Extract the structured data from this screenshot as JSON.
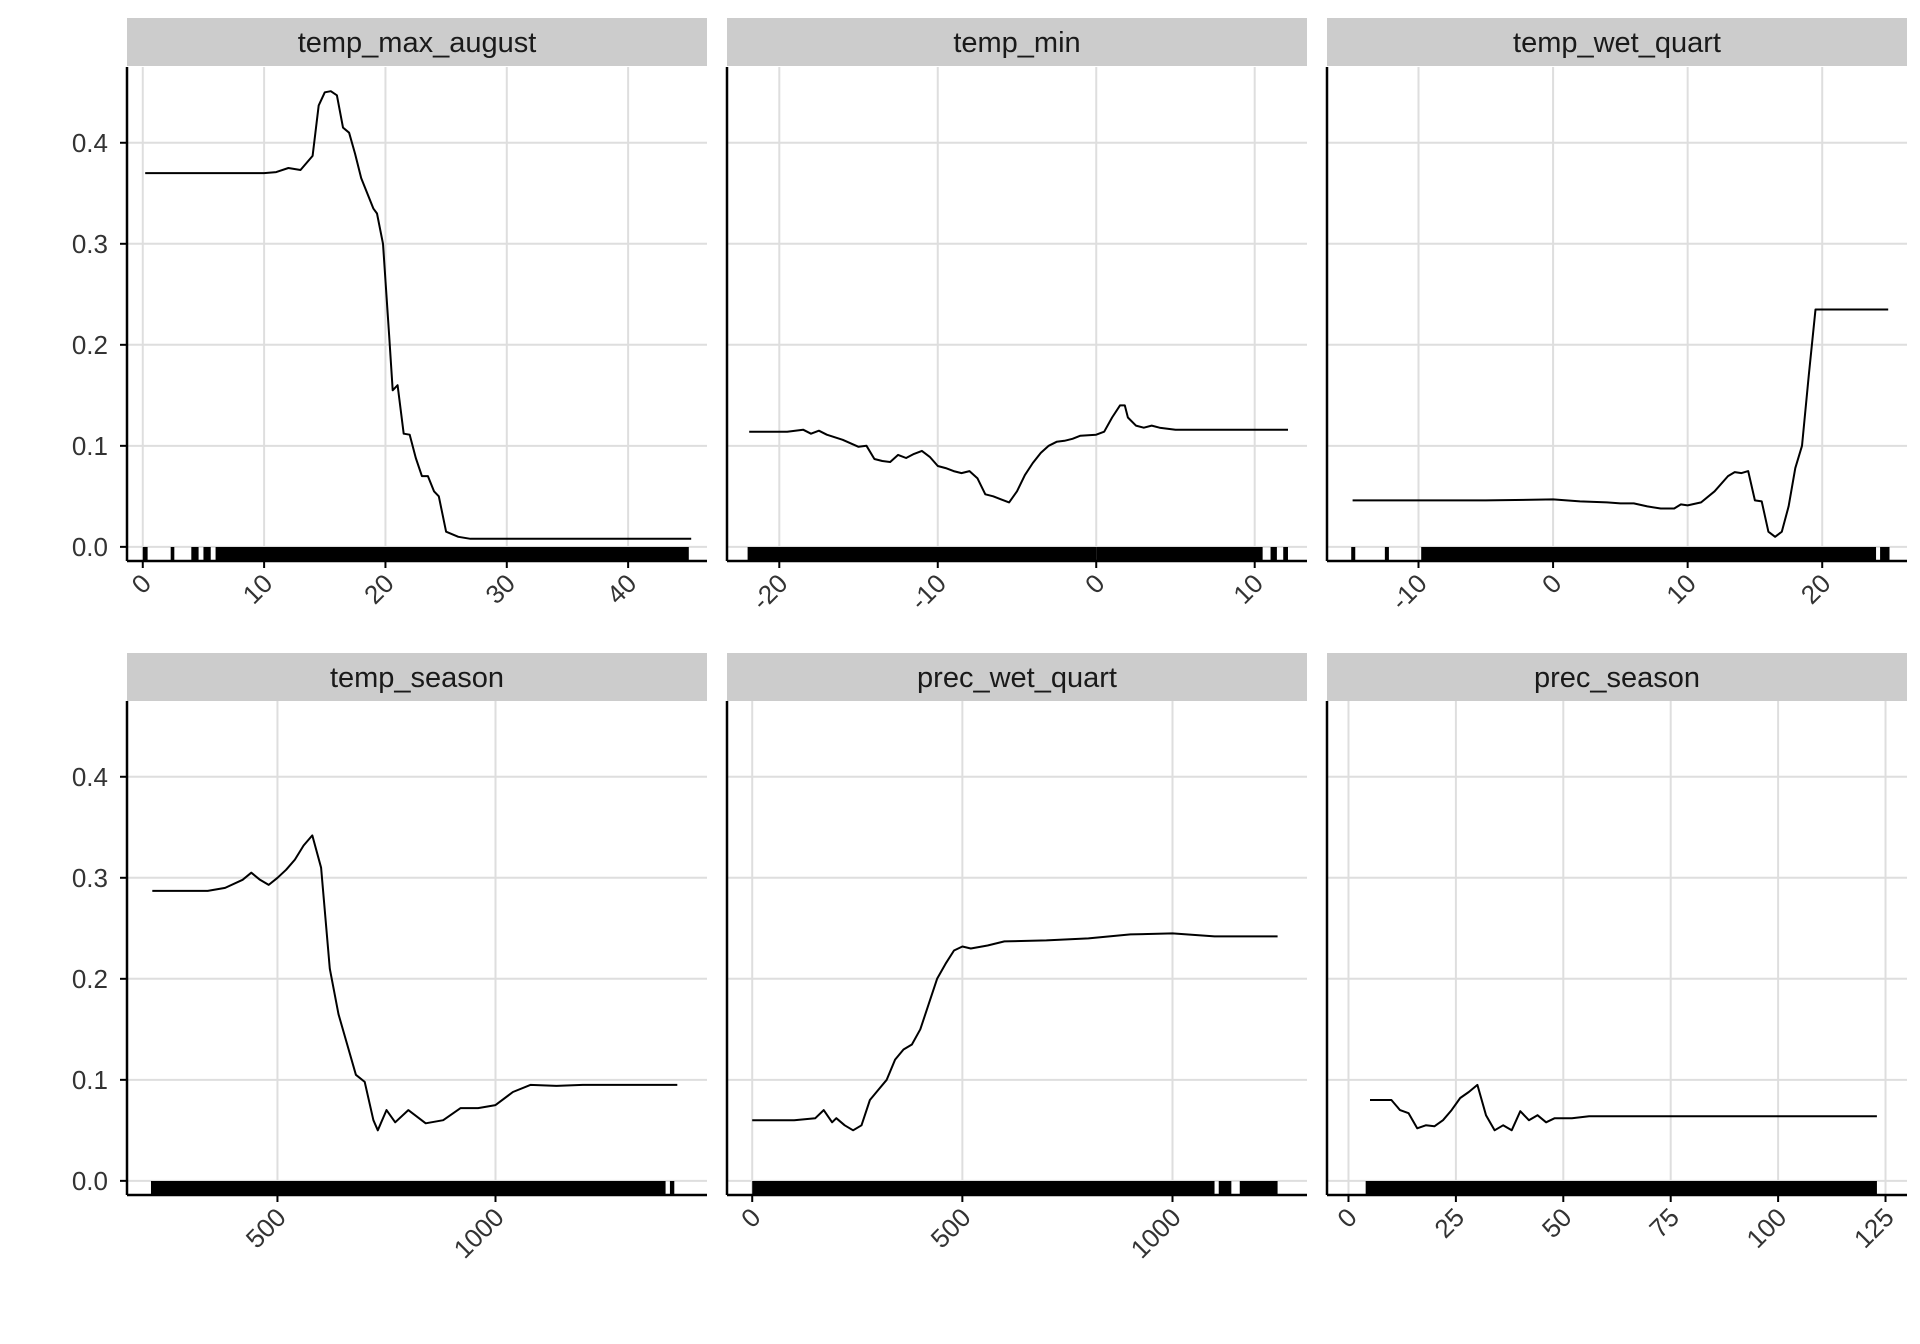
{
  "figure": {
    "type": "faceted line chart (partial dependence) with rug marks",
    "shared_y_ticks": [
      "0.0",
      "0.1",
      "0.2",
      "0.3",
      "0.4"
    ],
    "grid": true,
    "colors": {
      "line": "#000000",
      "strip": "#cccccc",
      "grid": "#dedede",
      "axis": "#000000"
    }
  },
  "chart_data": [
    {
      "type": "line",
      "title": "temp_max_august",
      "xlim": [
        -1.3,
        46.5
      ],
      "ylim": [
        -0.014,
        0.475
      ],
      "xticks": [
        0,
        10,
        20,
        30,
        40
      ],
      "xtick_labels": [
        "0",
        "10",
        "20",
        "30",
        "40"
      ],
      "yticks": [
        0,
        0.1,
        0.2,
        0.3,
        0.4
      ],
      "ytick_labels": [
        "0.0",
        "0.1",
        "0.2",
        "0.3",
        "0.4"
      ],
      "x": [
        0.2,
        5,
        10,
        11,
        12,
        13,
        14,
        14.5,
        15,
        15.5,
        16,
        16.5,
        17,
        17.5,
        18,
        19,
        19.3,
        19.8,
        20.3,
        20.6,
        21,
        21.5,
        22,
        22.5,
        23,
        23.5,
        24,
        24.4,
        25,
        26,
        27,
        35,
        45.2
      ],
      "y": [
        0.37,
        0.37,
        0.37,
        0.371,
        0.375,
        0.373,
        0.387,
        0.437,
        0.45,
        0.451,
        0.447,
        0.415,
        0.41,
        0.389,
        0.365,
        0.335,
        0.33,
        0.3,
        0.21,
        0.155,
        0.16,
        0.112,
        0.111,
        0.088,
        0.07,
        0.07,
        0.055,
        0.05,
        0.015,
        0.01,
        0.008,
        0.008,
        0.008
      ],
      "rug": [
        {
          "from": 0,
          "to": 0.4
        },
        {
          "from": 2.3,
          "to": 2.6
        },
        {
          "from": 4,
          "to": 4.6
        },
        {
          "from": 5,
          "to": 5.6
        },
        {
          "from": 6,
          "to": 45
        }
      ]
    },
    {
      "type": "line",
      "title": "temp_min",
      "xlim": [
        -23.3,
        13.3
      ],
      "ylim": [
        -0.014,
        0.475
      ],
      "xticks": [
        -20,
        -10,
        0,
        10
      ],
      "xtick_labels": [
        "-20",
        "-10",
        "0",
        "10"
      ],
      "yticks": [
        0,
        0.1,
        0.2,
        0.3,
        0.4
      ],
      "ytick_labels": [
        "0.0",
        "0.1",
        "0.2",
        "0.3",
        "0.4"
      ],
      "x": [
        -21.9,
        -19.5,
        -18.5,
        -18,
        -17.5,
        -17,
        -16,
        -15,
        -14.5,
        -14,
        -13.5,
        -13,
        -12.5,
        -12,
        -11.5,
        -11,
        -10.5,
        -10,
        -9.5,
        -9,
        -8.5,
        -8,
        -7.5,
        -7,
        -6.5,
        -6,
        -5.5,
        -5,
        -4.5,
        -4,
        -3.5,
        -3,
        -2.5,
        -2,
        -1.5,
        -1,
        0,
        0.5,
        1,
        1.5,
        1.8,
        2,
        2.5,
        3,
        3.5,
        4,
        5,
        6,
        8,
        10,
        12.1
      ],
      "y": [
        0.114,
        0.114,
        0.116,
        0.112,
        0.115,
        0.111,
        0.106,
        0.099,
        0.1,
        0.087,
        0.085,
        0.084,
        0.091,
        0.088,
        0.092,
        0.095,
        0.089,
        0.08,
        0.078,
        0.075,
        0.073,
        0.075,
        0.068,
        0.052,
        0.05,
        0.047,
        0.044,
        0.055,
        0.071,
        0.083,
        0.093,
        0.1,
        0.104,
        0.105,
        0.107,
        0.11,
        0.111,
        0.114,
        0.128,
        0.14,
        0.14,
        0.128,
        0.12,
        0.118,
        0.12,
        0.118,
        0.116,
        0.116,
        0.116,
        0.116,
        0.116
      ],
      "rug": [
        {
          "from": -22,
          "to": 0
        },
        {
          "from": 0,
          "to": 10.5
        },
        {
          "from": 11,
          "to": 11.4
        },
        {
          "from": 11.8,
          "to": 12.1
        }
      ]
    },
    {
      "type": "line",
      "title": "temp_wet_quart",
      "xlim": [
        -16.8,
        26.3
      ],
      "ylim": [
        -0.014,
        0.475
      ],
      "xticks": [
        -10,
        0,
        10,
        20
      ],
      "xtick_labels": [
        "-10",
        "0",
        "10",
        "20"
      ],
      "yticks": [
        0,
        0.1,
        0.2,
        0.3,
        0.4
      ],
      "ytick_labels": [
        "0.0",
        "0.1",
        "0.2",
        "0.3",
        "0.4"
      ],
      "x": [
        -14.9,
        -5,
        0,
        2,
        4,
        5,
        6,
        7,
        8,
        9,
        9.5,
        10,
        11,
        12,
        13,
        13.5,
        14,
        14.5,
        15,
        15.5,
        16,
        16.5,
        17,
        17.5,
        18,
        18.5,
        19,
        19.5,
        21,
        24.9
      ],
      "y": [
        0.046,
        0.046,
        0.047,
        0.045,
        0.044,
        0.043,
        0.043,
        0.04,
        0.038,
        0.038,
        0.042,
        0.041,
        0.044,
        0.055,
        0.07,
        0.074,
        0.073,
        0.075,
        0.046,
        0.045,
        0.015,
        0.01,
        0.015,
        0.04,
        0.078,
        0.1,
        0.17,
        0.235,
        0.235,
        0.235
      ],
      "rug": [
        {
          "from": -15,
          "to": -14.7
        },
        {
          "from": -12.5,
          "to": -12.2
        },
        {
          "from": -9.8,
          "to": 24
        },
        {
          "from": 24.3,
          "to": 25
        }
      ]
    },
    {
      "type": "line",
      "title": "temp_season",
      "xlim": [
        155,
        1485
      ],
      "ylim": [
        -0.014,
        0.475
      ],
      "xticks": [
        500,
        1000
      ],
      "xtick_labels": [
        "500",
        "1000"
      ],
      "yticks": [
        0,
        0.1,
        0.2,
        0.3,
        0.4
      ],
      "ytick_labels": [
        "0.0",
        "0.1",
        "0.2",
        "0.3",
        "0.4"
      ],
      "x": [
        213,
        300,
        340,
        380,
        420,
        440,
        460,
        480,
        500,
        520,
        540,
        560,
        580,
        600,
        620,
        640,
        660,
        680,
        700,
        720,
        730,
        750,
        770,
        800,
        840,
        880,
        920,
        960,
        1000,
        1040,
        1080,
        1140,
        1200,
        1417
      ],
      "y": [
        0.287,
        0.287,
        0.287,
        0.29,
        0.298,
        0.305,
        0.298,
        0.293,
        0.3,
        0.308,
        0.318,
        0.332,
        0.342,
        0.31,
        0.21,
        0.165,
        0.135,
        0.105,
        0.098,
        0.06,
        0.05,
        0.07,
        0.058,
        0.07,
        0.057,
        0.06,
        0.072,
        0.072,
        0.075,
        0.088,
        0.095,
        0.094,
        0.095,
        0.095
      ],
      "rug": [
        {
          "from": 210,
          "to": 1390
        },
        {
          "from": 1400,
          "to": 1410
        }
      ]
    },
    {
      "type": "line",
      "title": "prec_wet_quart",
      "xlim": [
        -60,
        1320
      ],
      "ylim": [
        -0.014,
        0.475
      ],
      "xticks": [
        0,
        500,
        1000
      ],
      "xtick_labels": [
        "0",
        "500",
        "1000"
      ],
      "yticks": [
        0,
        0.1,
        0.2,
        0.3,
        0.4
      ],
      "ytick_labels": [
        "0.0",
        "0.1",
        "0.2",
        "0.3",
        "0.4"
      ],
      "x": [
        0,
        100,
        150,
        170,
        190,
        200,
        220,
        240,
        260,
        280,
        300,
        320,
        340,
        360,
        380,
        400,
        420,
        440,
        460,
        480,
        500,
        520,
        560,
        600,
        700,
        800,
        900,
        1000,
        1100,
        1250
      ],
      "y": [
        0.06,
        0.06,
        0.062,
        0.07,
        0.058,
        0.062,
        0.055,
        0.05,
        0.055,
        0.08,
        0.09,
        0.1,
        0.12,
        0.13,
        0.135,
        0.15,
        0.175,
        0.2,
        0.215,
        0.228,
        0.232,
        0.23,
        0.233,
        0.237,
        0.238,
        0.24,
        0.244,
        0.245,
        0.242,
        0.242
      ],
      "rug": [
        {
          "from": 0,
          "to": 1100
        },
        {
          "from": 1110,
          "to": 1140
        },
        {
          "from": 1160,
          "to": 1250
        }
      ]
    },
    {
      "type": "line",
      "title": "prec_season",
      "xlim": [
        -5,
        130
      ],
      "ylim": [
        -0.014,
        0.475
      ],
      "xticks": [
        0,
        25,
        50,
        75,
        100,
        125
      ],
      "xtick_labels": [
        "0",
        "25",
        "50",
        "75",
        "100",
        "125"
      ],
      "yticks": [
        0,
        0.1,
        0.2,
        0.3,
        0.4
      ],
      "ytick_labels": [
        "0.0",
        "0.1",
        "0.2",
        "0.3",
        "0.4"
      ],
      "x": [
        5,
        10,
        12,
        14,
        16,
        18,
        20,
        22,
        24,
        26,
        28,
        30,
        32,
        34,
        36,
        38,
        40,
        42,
        44,
        46,
        48,
        52,
        56,
        60,
        80,
        123
      ],
      "y": [
        0.08,
        0.08,
        0.07,
        0.067,
        0.052,
        0.055,
        0.054,
        0.06,
        0.07,
        0.082,
        0.088,
        0.095,
        0.065,
        0.05,
        0.055,
        0.05,
        0.069,
        0.06,
        0.065,
        0.058,
        0.062,
        0.062,
        0.064,
        0.064,
        0.064,
        0.064
      ],
      "rug": [
        {
          "from": 4,
          "to": 123
        }
      ]
    }
  ]
}
